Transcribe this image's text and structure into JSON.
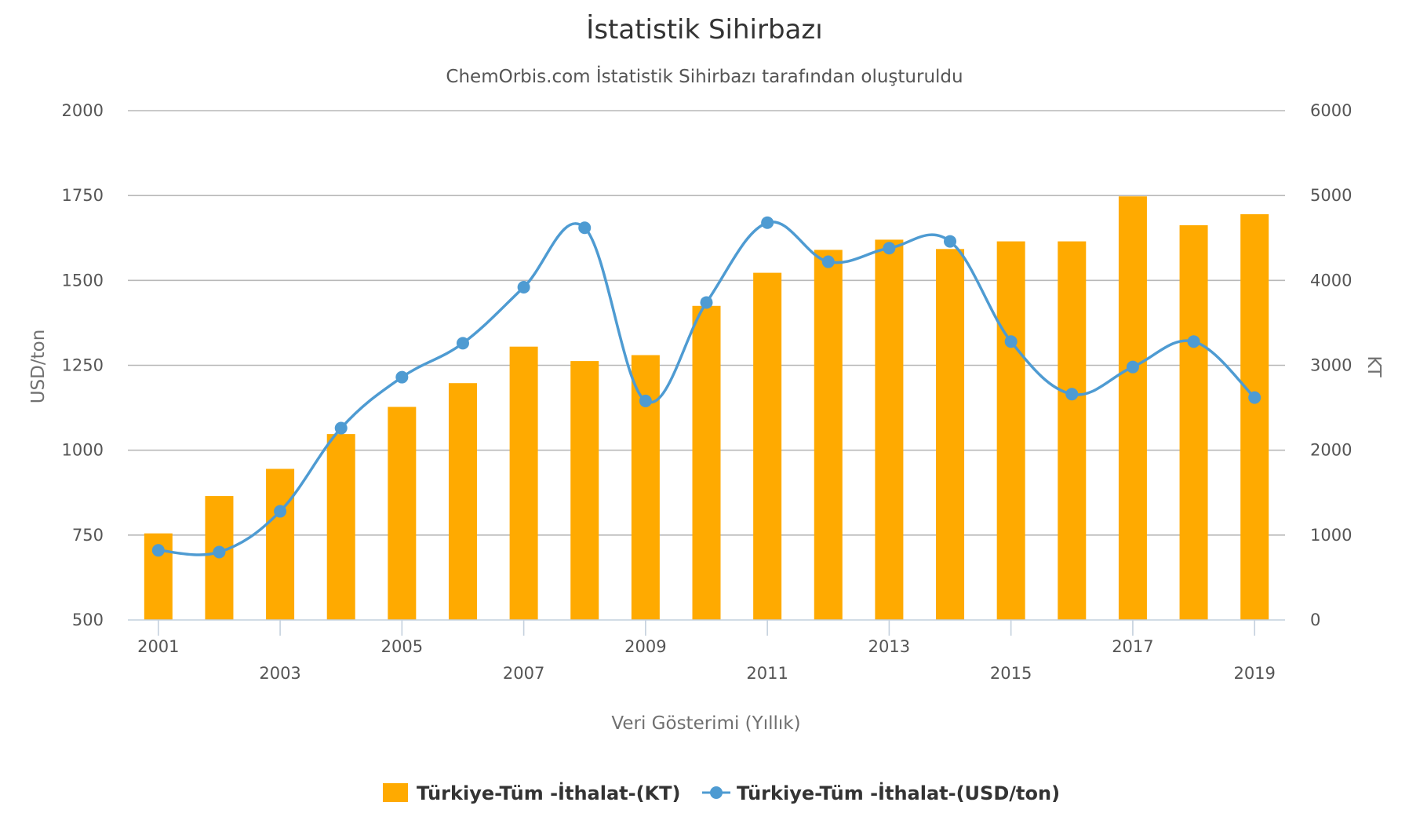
{
  "chart_data": {
    "type": "bar",
    "title": "İstatistik Sihirbazı",
    "subtitle": "ChemOrbis.com İstatistik Sihirbazı tarafından oluşturuldu",
    "xlabel": "Veri Gösterimi (Yıllık)",
    "ylabel_left": "USD/ton",
    "ylabel_right": "KT",
    "categories": [
      "2001",
      "2002",
      "2003",
      "2004",
      "2005",
      "2006",
      "2007",
      "2008",
      "2009",
      "2010",
      "2011",
      "2012",
      "2013",
      "2014",
      "2015",
      "2016",
      "2017",
      "2018",
      "2019"
    ],
    "x_tick_labels": [
      "2001",
      "2003",
      "2005",
      "2007",
      "2009",
      "2011",
      "2013",
      "2015",
      "2017",
      "2019"
    ],
    "y_left": {
      "min": 500,
      "max": 2000,
      "ticks": [
        500,
        750,
        1000,
        1250,
        1500,
        1750,
        2000
      ]
    },
    "y_right": {
      "min": 0,
      "max": 6000,
      "ticks": [
        0,
        1000,
        2000,
        3000,
        4000,
        5000,
        6000
      ]
    },
    "grid": true,
    "legend_position": "bottom-center",
    "series": [
      {
        "name": "Türkiye-Tüm -İthalat-(KT)",
        "type": "bar",
        "axis": "right",
        "color": "#FFAA00",
        "values": [
          1020,
          1460,
          1780,
          2190,
          2510,
          2790,
          3220,
          3050,
          3120,
          3700,
          4090,
          4360,
          4480,
          4370,
          4460,
          4460,
          4990,
          4650,
          4780
        ]
      },
      {
        "name": "Türkiye-Tüm -İthalat-(USD/ton)",
        "type": "line",
        "axis": "left",
        "color": "#4E9BD2",
        "values": [
          705,
          700,
          820,
          1065,
          1215,
          1315,
          1480,
          1655,
          1145,
          1435,
          1670,
          1555,
          1595,
          1615,
          1320,
          1165,
          1245,
          1320,
          1155
        ]
      }
    ]
  }
}
